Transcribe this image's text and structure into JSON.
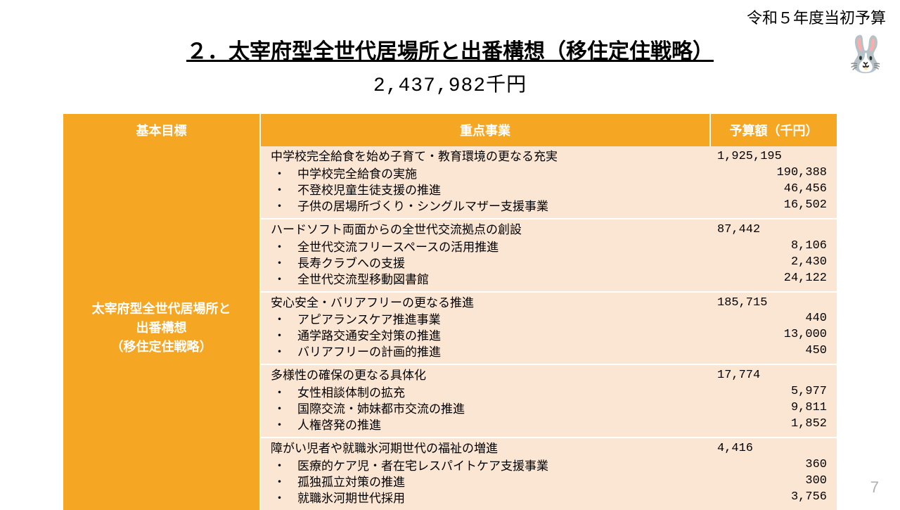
{
  "top_label": "令和５年度当初予算",
  "mascot_glyph": "🐰",
  "title": "２．太宰府型全世代居場所と出番構想（移住定住戦略）",
  "total_amount": "2,437,982千円",
  "page_number": "7",
  "headers": {
    "goal": "基本目標",
    "project": "重点事業",
    "amount": "予算額（千円）"
  },
  "goal_cell": "太宰府型全世代居場所と\n出番構想\n（移住定住戦略）",
  "rows": [
    {
      "main": "中学校完全給食を始め子育て・教育環境の更なる充実",
      "subs": [
        "中学校完全給食の実施",
        "不登校児童生徒支援の推進",
        "子供の居場所づくり・シングルマザー支援事業"
      ],
      "main_amt": "1,925,195",
      "sub_amts": [
        "190,388",
        "46,456",
        "16,502"
      ]
    },
    {
      "main": "ハードソフト両面からの全世代交流拠点の創設",
      "subs": [
        "全世代交流フリースペースの活用推進",
        "長寿クラブへの支援",
        "全世代交流型移動図書館"
      ],
      "main_amt": "87,442",
      "sub_amts": [
        "8,106",
        "2,430",
        "24,122"
      ]
    },
    {
      "main": "安心安全・バリアフリーの更なる推進",
      "subs": [
        "アピアランスケア推進事業",
        "通学路交通安全対策の推進",
        "バリアフリーの計画的推進"
      ],
      "main_amt": "185,715",
      "sub_amts": [
        "440",
        "13,000",
        "450"
      ]
    },
    {
      "main": "多様性の確保の更なる具体化",
      "subs": [
        "女性相談体制の拡充",
        "国際交流・姉妹都市交流の推進",
        "人権啓発の推進"
      ],
      "main_amt": "17,774",
      "sub_amts": [
        "5,977",
        "9,811",
        "1,852"
      ]
    },
    {
      "main": "障がい児者や就職氷河期世代の福祉の増進",
      "subs": [
        "医療的ケア児・者在宅レスパイトケア支援事業",
        "孤独孤立対策の推進",
        "就職氷河期世代採用"
      ],
      "main_amt": "4,416",
      "sub_amts": [
        "360",
        "300",
        "3,756"
      ]
    }
  ],
  "colors": {
    "header_bg": "#f5a623",
    "header_fg": "#ffffff",
    "cell_bg": "#fbe6d3",
    "cell_fg": "#000000",
    "page_bg": "#ffffff",
    "pagenum": "#b0b0b0"
  }
}
